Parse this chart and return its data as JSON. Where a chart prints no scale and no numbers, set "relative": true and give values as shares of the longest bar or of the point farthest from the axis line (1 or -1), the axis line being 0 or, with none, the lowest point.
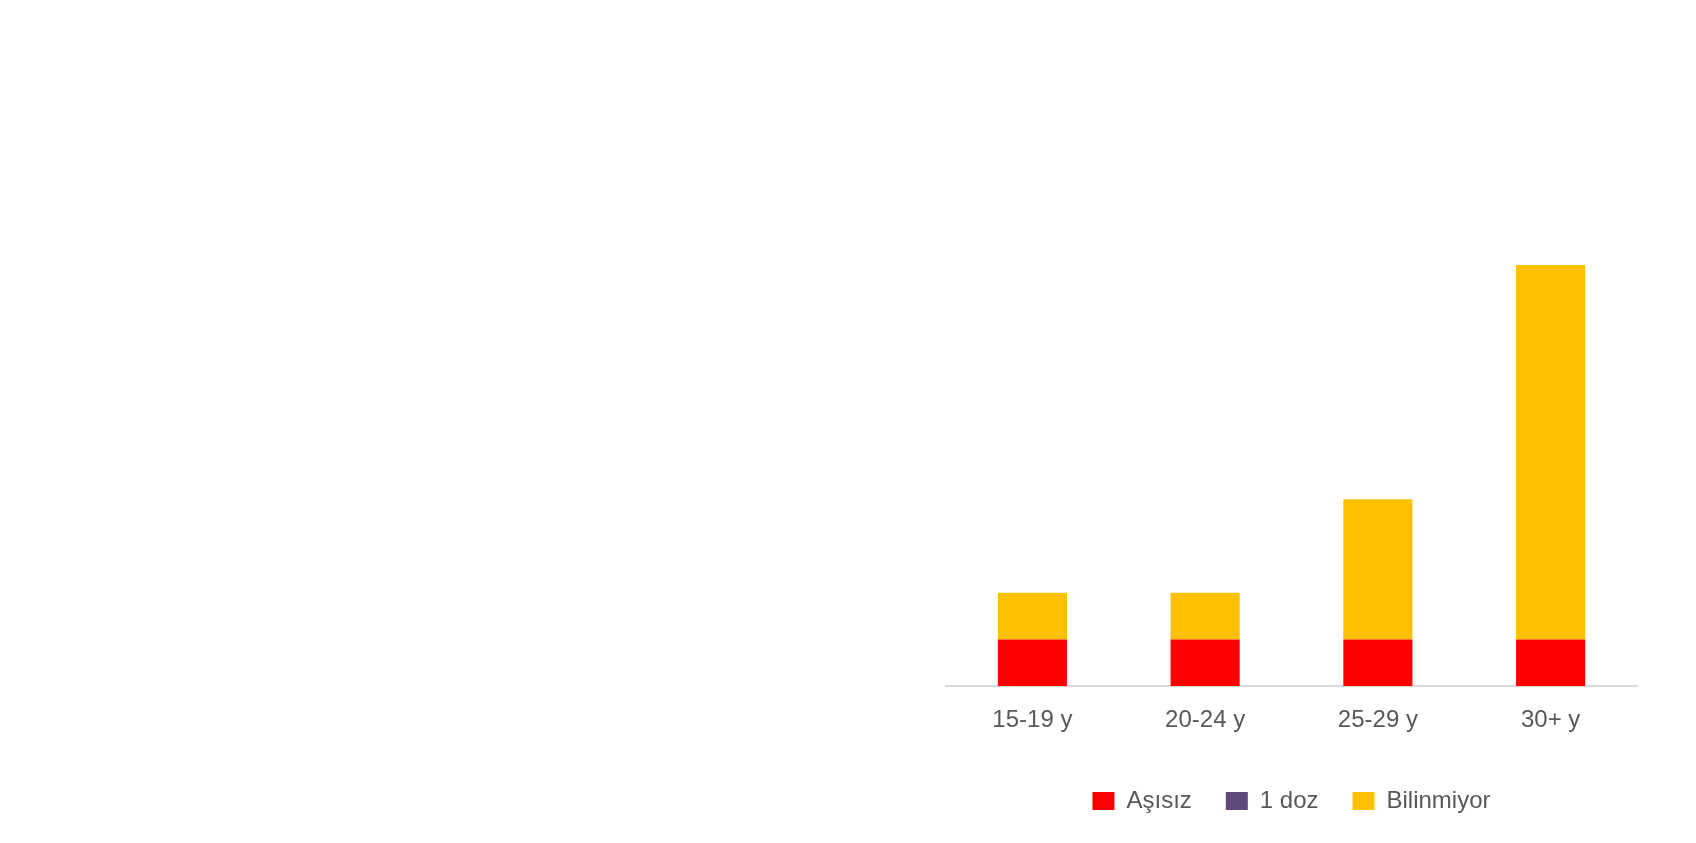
{
  "chart_data": {
    "type": "bar",
    "relative": true,
    "stacked": true,
    "legend": "bottom",
    "grid": false,
    "categories": [
      "15-19 y",
      "20-24 y",
      "25-29 y",
      "30+ y"
    ],
    "series": [
      {
        "name": "Aşısız",
        "color": "#ff0000",
        "values": [
          0.111,
          0.111,
          0.111,
          0.111
        ]
      },
      {
        "name": "1 doz",
        "color": "#604a7b",
        "values": [
          0,
          0,
          0,
          0
        ]
      },
      {
        "name": "Bilinmiyor",
        "color": "#ffc000",
        "values": [
          0.111,
          0.111,
          0.333,
          0.889
        ]
      }
    ]
  }
}
